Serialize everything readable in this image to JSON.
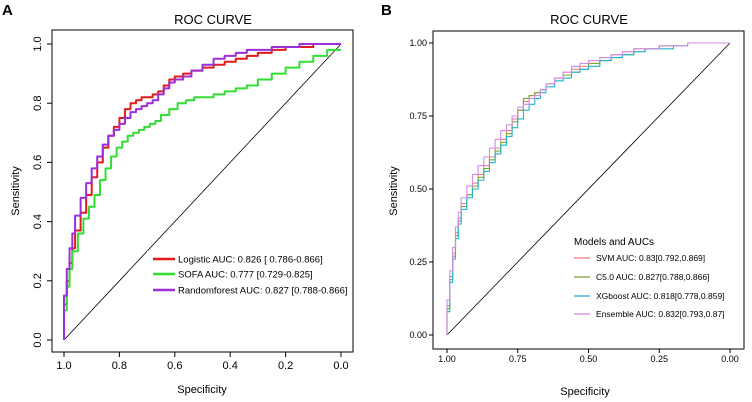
{
  "chart_data": [
    {
      "panel": "A",
      "type": "line",
      "title": "ROC CURVE",
      "xlabel": "Specificity",
      "ylabel": "Sensitivity",
      "xlim": [
        1.0,
        0.0
      ],
      "ylim": [
        0.0,
        1.0
      ],
      "x_ticks": [
        "1.0",
        "0.8",
        "0.6",
        "0.4",
        "0.2",
        "0.0"
      ],
      "y_ticks": [
        "0.0",
        "0.2",
        "0.4",
        "0.6",
        "0.8",
        "1.0"
      ],
      "legend_position": "bottom-right",
      "reference_line": true,
      "series": [
        {
          "name": "Logistic AUC: 0.826 [ 0.786-0.866]",
          "color": "#e41a1c",
          "specificity": [
            1.0,
            0.99,
            0.98,
            0.97,
            0.96,
            0.94,
            0.92,
            0.9,
            0.88,
            0.86,
            0.84,
            0.82,
            0.8,
            0.78,
            0.76,
            0.74,
            0.72,
            0.7,
            0.68,
            0.66,
            0.64,
            0.62,
            0.6,
            0.57,
            0.54,
            0.5,
            0.46,
            0.42,
            0.38,
            0.34,
            0.3,
            0.25,
            0.2,
            0.15,
            0.1,
            0.05,
            0.0
          ],
          "sensitivity": [
            0.0,
            0.12,
            0.2,
            0.26,
            0.31,
            0.37,
            0.43,
            0.49,
            0.55,
            0.6,
            0.65,
            0.69,
            0.72,
            0.75,
            0.78,
            0.8,
            0.81,
            0.82,
            0.82,
            0.83,
            0.84,
            0.86,
            0.88,
            0.89,
            0.9,
            0.91,
            0.92,
            0.93,
            0.94,
            0.95,
            0.96,
            0.97,
            0.98,
            0.99,
            0.99,
            1.0,
            1.0
          ]
        },
        {
          "name": "SOFA AUC: 0.777 [0.729-0.825]",
          "color": "#33dd33",
          "specificity": [
            1.0,
            0.99,
            0.98,
            0.97,
            0.95,
            0.93,
            0.91,
            0.89,
            0.87,
            0.85,
            0.83,
            0.81,
            0.79,
            0.77,
            0.75,
            0.73,
            0.71,
            0.69,
            0.67,
            0.65,
            0.62,
            0.59,
            0.56,
            0.53,
            0.5,
            0.46,
            0.42,
            0.38,
            0.34,
            0.3,
            0.25,
            0.2,
            0.15,
            0.1,
            0.05,
            0.0
          ],
          "sensitivity": [
            0.0,
            0.1,
            0.18,
            0.24,
            0.3,
            0.36,
            0.41,
            0.45,
            0.49,
            0.54,
            0.58,
            0.62,
            0.65,
            0.67,
            0.69,
            0.7,
            0.71,
            0.72,
            0.73,
            0.74,
            0.76,
            0.78,
            0.8,
            0.81,
            0.82,
            0.82,
            0.83,
            0.84,
            0.85,
            0.86,
            0.88,
            0.9,
            0.92,
            0.94,
            0.96,
            0.98
          ]
        },
        {
          "name": "Randomforest AUC: 0.827 [0.788-0.866]",
          "color": "#9b30d9",
          "specificity": [
            1.0,
            0.99,
            0.98,
            0.97,
            0.96,
            0.94,
            0.92,
            0.9,
            0.88,
            0.86,
            0.84,
            0.82,
            0.8,
            0.78,
            0.76,
            0.74,
            0.72,
            0.7,
            0.68,
            0.66,
            0.64,
            0.62,
            0.6,
            0.57,
            0.54,
            0.5,
            0.46,
            0.42,
            0.38,
            0.34,
            0.3,
            0.25,
            0.2,
            0.15,
            0.1,
            0.05,
            0.0
          ],
          "sensitivity": [
            0.0,
            0.15,
            0.24,
            0.31,
            0.36,
            0.42,
            0.48,
            0.53,
            0.58,
            0.62,
            0.66,
            0.69,
            0.71,
            0.73,
            0.75,
            0.77,
            0.78,
            0.79,
            0.8,
            0.81,
            0.83,
            0.85,
            0.87,
            0.88,
            0.89,
            0.91,
            0.93,
            0.95,
            0.96,
            0.97,
            0.98,
            0.98,
            0.99,
            0.99,
            1.0,
            1.0,
            1.0
          ]
        }
      ]
    },
    {
      "panel": "B",
      "type": "line",
      "title": "ROC CURVE",
      "xlabel": "Specificity",
      "ylabel": "Sensitivity",
      "xlim": [
        1.0,
        0.0
      ],
      "ylim": [
        0.0,
        1.0
      ],
      "x_ticks": [
        "1.00",
        "0.75",
        "0.50",
        "0.25",
        "0.00"
      ],
      "y_ticks": [
        "0.00",
        "0.25",
        "0.50",
        "0.75",
        "1.00"
      ],
      "legend_title": "Models and AUCs",
      "legend_position": "bottom-right",
      "reference_line": true,
      "series": [
        {
          "name": "SVM AUC: 0.83[0.792,0.869]",
          "color": "#f08080",
          "specificity": [
            1.0,
            0.99,
            0.98,
            0.97,
            0.96,
            0.95,
            0.93,
            0.91,
            0.89,
            0.87,
            0.85,
            0.83,
            0.81,
            0.79,
            0.77,
            0.75,
            0.73,
            0.71,
            0.69,
            0.67,
            0.65,
            0.62,
            0.59,
            0.56,
            0.53,
            0.5,
            0.46,
            0.42,
            0.38,
            0.34,
            0.3,
            0.25,
            0.2,
            0.15,
            0.1,
            0.05,
            0.0
          ],
          "sensitivity": [
            0.0,
            0.1,
            0.2,
            0.28,
            0.35,
            0.4,
            0.45,
            0.48,
            0.52,
            0.55,
            0.58,
            0.61,
            0.64,
            0.67,
            0.7,
            0.74,
            0.77,
            0.8,
            0.82,
            0.83,
            0.84,
            0.86,
            0.88,
            0.9,
            0.91,
            0.92,
            0.93,
            0.94,
            0.96,
            0.97,
            0.98,
            0.98,
            0.99,
            0.99,
            1.0,
            1.0,
            1.0
          ]
        },
        {
          "name": "C5.0 AUC: 0.827[0.788,0.866]",
          "color": "#7ba82f",
          "specificity": [
            1.0,
            0.99,
            0.98,
            0.97,
            0.96,
            0.95,
            0.93,
            0.91,
            0.89,
            0.87,
            0.85,
            0.83,
            0.81,
            0.79,
            0.77,
            0.75,
            0.73,
            0.71,
            0.69,
            0.67,
            0.65,
            0.62,
            0.59,
            0.56,
            0.53,
            0.5,
            0.46,
            0.42,
            0.38,
            0.34,
            0.3,
            0.25,
            0.2,
            0.15,
            0.1,
            0.05,
            0.0
          ],
          "sensitivity": [
            0.0,
            0.09,
            0.19,
            0.27,
            0.34,
            0.39,
            0.44,
            0.48,
            0.51,
            0.54,
            0.57,
            0.6,
            0.63,
            0.66,
            0.69,
            0.73,
            0.77,
            0.81,
            0.82,
            0.83,
            0.84,
            0.86,
            0.87,
            0.89,
            0.9,
            0.91,
            0.93,
            0.94,
            0.95,
            0.96,
            0.97,
            0.98,
            0.99,
            0.99,
            1.0,
            1.0,
            1.0
          ]
        },
        {
          "name": "XGboost AUC: 0.818[0.778,0.859]",
          "color": "#1fb5d0",
          "specificity": [
            1.0,
            0.99,
            0.98,
            0.97,
            0.96,
            0.95,
            0.93,
            0.91,
            0.89,
            0.87,
            0.85,
            0.83,
            0.81,
            0.79,
            0.77,
            0.75,
            0.73,
            0.71,
            0.69,
            0.67,
            0.65,
            0.62,
            0.59,
            0.56,
            0.53,
            0.5,
            0.46,
            0.42,
            0.38,
            0.34,
            0.3,
            0.25,
            0.2,
            0.15,
            0.1,
            0.05,
            0.0
          ],
          "sensitivity": [
            0.0,
            0.08,
            0.18,
            0.26,
            0.33,
            0.38,
            0.43,
            0.47,
            0.5,
            0.53,
            0.56,
            0.59,
            0.62,
            0.65,
            0.68,
            0.71,
            0.74,
            0.77,
            0.79,
            0.81,
            0.83,
            0.85,
            0.87,
            0.88,
            0.9,
            0.91,
            0.92,
            0.94,
            0.95,
            0.96,
            0.97,
            0.98,
            0.98,
            0.99,
            1.0,
            1.0,
            1.0
          ]
        },
        {
          "name": "Ensemble AUC: 0.832[0.793,0.87]",
          "color": "#d38be8",
          "specificity": [
            1.0,
            0.99,
            0.98,
            0.97,
            0.96,
            0.95,
            0.93,
            0.91,
            0.89,
            0.87,
            0.85,
            0.83,
            0.81,
            0.79,
            0.77,
            0.75,
            0.73,
            0.71,
            0.69,
            0.67,
            0.65,
            0.62,
            0.59,
            0.56,
            0.53,
            0.5,
            0.46,
            0.42,
            0.38,
            0.34,
            0.3,
            0.25,
            0.2,
            0.15,
            0.1,
            0.05,
            0.0
          ],
          "sensitivity": [
            0.0,
            0.12,
            0.22,
            0.3,
            0.37,
            0.42,
            0.47,
            0.51,
            0.55,
            0.58,
            0.61,
            0.64,
            0.67,
            0.7,
            0.72,
            0.75,
            0.78,
            0.79,
            0.81,
            0.82,
            0.84,
            0.86,
            0.88,
            0.9,
            0.92,
            0.93,
            0.94,
            0.95,
            0.96,
            0.97,
            0.98,
            0.98,
            0.99,
            0.99,
            1.0,
            1.0,
            1.0
          ]
        }
      ]
    }
  ]
}
